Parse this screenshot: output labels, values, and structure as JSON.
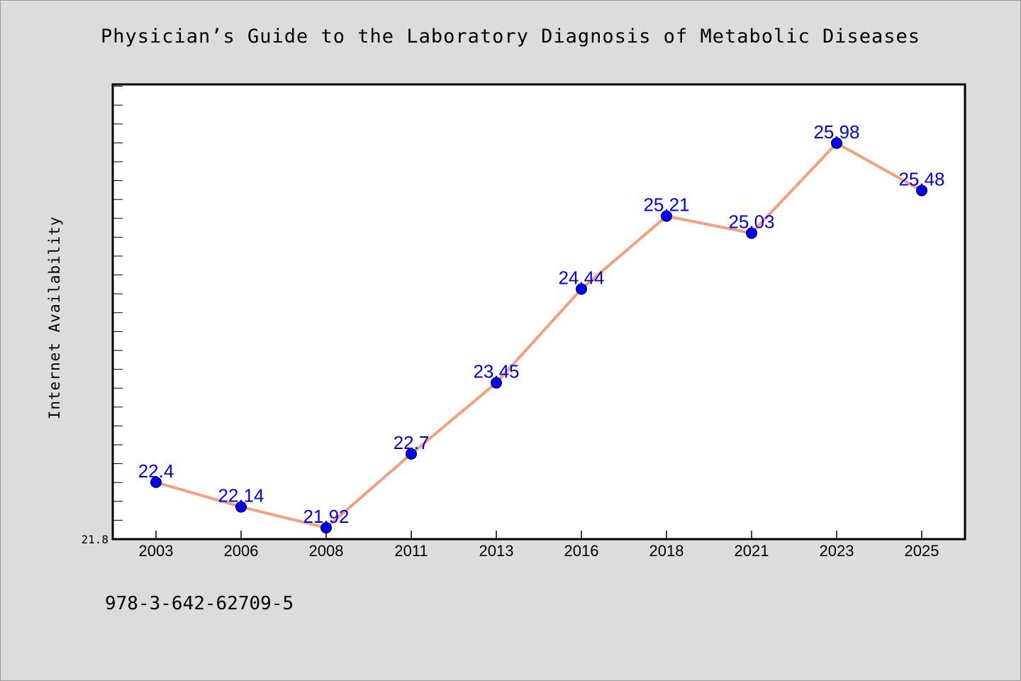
{
  "title": "Physician’s Guide to the Laboratory Diagnosis of Metabolic Diseases",
  "ylabel": "Internet Availability",
  "footer_text": "978-3-642-62709-5",
  "chart_data": {
    "type": "line",
    "title": "Physician’s Guide to the Laboratory Diagnosis of Metabolic Diseases",
    "xlabel": "",
    "ylabel": "Internet Availability",
    "categories": [
      "2003",
      "2006",
      "2008",
      "2011",
      "2013",
      "2016",
      "2018",
      "2021",
      "2023",
      "2025"
    ],
    "series": [
      {
        "values": [
          22.4,
          22.14,
          21.92,
          22.7,
          23.45,
          24.44,
          25.21,
          25.03,
          25.98,
          25.48
        ],
        "data_labels": [
          "22.4",
          "22.14",
          "21.92",
          "22.7",
          "23.45",
          "24.44",
          "25.21",
          "25.03",
          "25.98",
          "25.48"
        ]
      }
    ],
    "y_tick_labels": [
      "21.8"
    ],
    "ylim": [
      21.8,
      26.6
    ],
    "grid": false,
    "legend": "none",
    "colors": {
      "line": "#f4a07c",
      "marker": "#0000ff",
      "data_label": "#0000ff"
    }
  }
}
